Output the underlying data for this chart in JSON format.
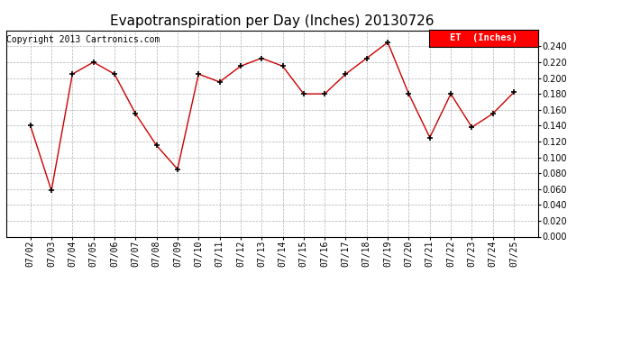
{
  "title": "Evapotranspiration per Day (Inches) 20130726",
  "copyright_text": "Copyright 2013 Cartronics.com",
  "legend_label": "ET  (Inches)",
  "legend_bg": "#ff0000",
  "legend_text_color": "#ffffff",
  "x_labels": [
    "07/02",
    "07/03",
    "07/04",
    "07/05",
    "07/06",
    "07/07",
    "07/08",
    "07/09",
    "07/10",
    "07/11",
    "07/12",
    "07/13",
    "07/14",
    "07/15",
    "07/16",
    "07/17",
    "07/18",
    "07/19",
    "07/20",
    "07/21",
    "07/22",
    "07/23",
    "07/24",
    "07/25"
  ],
  "y_values": [
    0.14,
    0.058,
    0.205,
    0.22,
    0.205,
    0.155,
    0.115,
    0.085,
    0.205,
    0.195,
    0.215,
    0.225,
    0.215,
    0.18,
    0.18,
    0.205,
    0.225,
    0.245,
    0.18,
    0.125,
    0.18,
    0.138,
    0.155,
    0.182
  ],
  "line_color": "#cc0000",
  "marker": "+",
  "marker_color": "#000000",
  "ylim": [
    0.0,
    0.26
  ],
  "yticks": [
    0.0,
    0.02,
    0.04,
    0.06,
    0.08,
    0.1,
    0.12,
    0.14,
    0.16,
    0.18,
    0.2,
    0.22,
    0.24
  ],
  "background_color": "#ffffff",
  "grid_color": "#aaaaaa",
  "title_fontsize": 11,
  "copyright_fontsize": 7,
  "tick_fontsize": 7,
  "legend_fontsize": 7.5
}
